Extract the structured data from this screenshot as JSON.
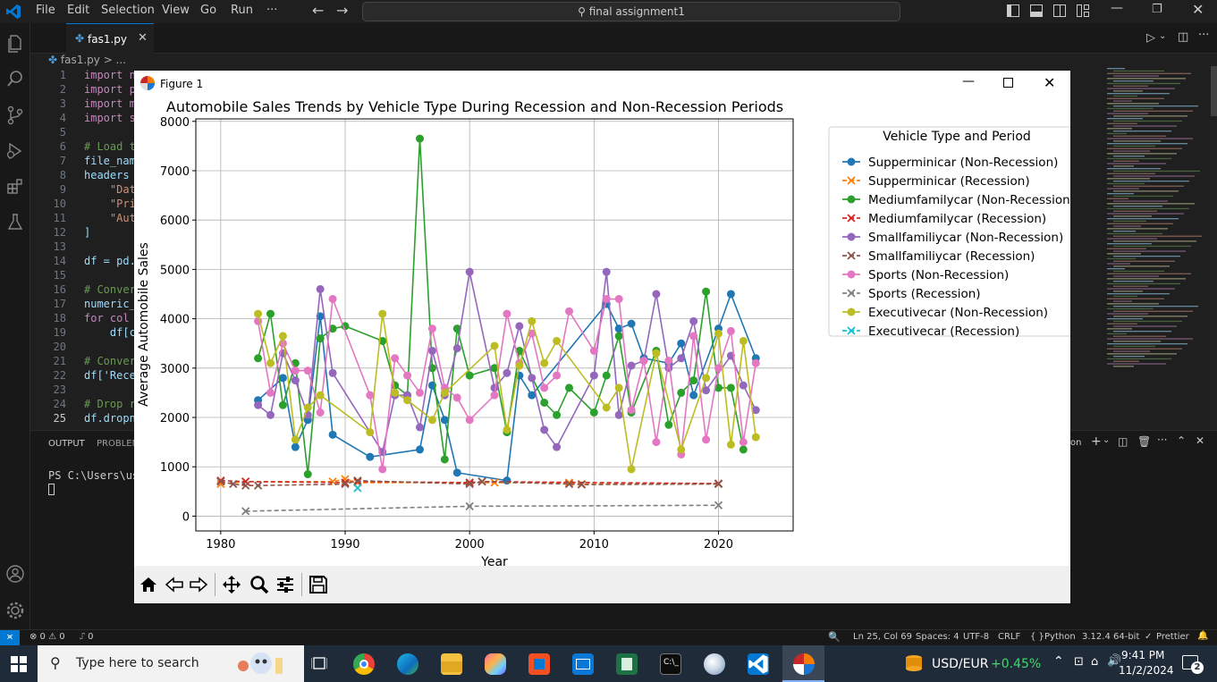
{
  "titlebar": {
    "menu": [
      "File",
      "Edit",
      "Selection",
      "View",
      "Go",
      "Run",
      "···"
    ],
    "search": "final assignment1"
  },
  "editor": {
    "tab_label": "fas1.py",
    "breadcrumb": "fas1.py > ...",
    "lines": [
      {
        "n": "1",
        "text": "import nu"
      },
      {
        "n": "2",
        "text": "import pa"
      },
      {
        "n": "3",
        "text": "import ma"
      },
      {
        "n": "4",
        "text": "import se"
      },
      {
        "n": "5",
        "text": ""
      },
      {
        "n": "6",
        "text": "# Load th"
      },
      {
        "n": "7",
        "text": "file_name"
      },
      {
        "n": "8",
        "text": "headers ="
      },
      {
        "n": "9",
        "text": "    \"Date"
      },
      {
        "n": "10",
        "text": "    \"Pric"
      },
      {
        "n": "11",
        "text": "    \"Auto"
      },
      {
        "n": "12",
        "text": "]"
      },
      {
        "n": "13",
        "text": ""
      },
      {
        "n": "14",
        "text": "df = pd.r"
      },
      {
        "n": "15",
        "text": ""
      },
      {
        "n": "16",
        "text": "# Convert"
      },
      {
        "n": "17",
        "text": "numeric_c"
      },
      {
        "n": "18",
        "text": "for col i"
      },
      {
        "n": "19",
        "text": "    df[cc"
      },
      {
        "n": "20",
        "text": ""
      },
      {
        "n": "21",
        "text": "# Convert"
      },
      {
        "n": "22",
        "text": "df['Reces"
      },
      {
        "n": "23",
        "text": ""
      },
      {
        "n": "24",
        "text": "# Drop ro"
      },
      {
        "n": "25",
        "text": "df.dropna"
      }
    ]
  },
  "panel": {
    "tabs": [
      "OUTPUT",
      "PROBLEMS"
    ],
    "terminal_prompt": "PS C:\\Users\\user",
    "right_label": "on"
  },
  "statusbar": {
    "problems": "⊗ 0 ⚠ 0",
    "ports": "⑀ 0",
    "position": "Ln 25, Col 69",
    "spaces": "Spaces: 4",
    "encoding": "UTF-8",
    "eol": "CRLF",
    "language": "Python",
    "interpreter": "3.12.4 64-bit",
    "formatter": "Prettier"
  },
  "taskbar": {
    "search_placeholder": "Type here to search",
    "ticker_name": "USD/EUR",
    "ticker_change": "+0.45%",
    "time": "9:41 PM",
    "date": "11/2/2024",
    "notifications": "2"
  },
  "figure": {
    "window_title": "Figure 1"
  },
  "colors": {
    "accent": "#0078d4"
  },
  "chart_data": {
    "type": "line",
    "title": "Automobile Sales Trends by Vehicle Type During Recession and Non-Recession Periods",
    "xlabel": "Year",
    "ylabel": "Average Automobile Sales",
    "xlim": [
      1978,
      2026
    ],
    "ylim": [
      -300,
      8050
    ],
    "xticks": [
      1980,
      1990,
      2000,
      2010,
      2020
    ],
    "yticks": [
      0,
      1000,
      2000,
      3000,
      4000,
      5000,
      6000,
      7000,
      8000
    ],
    "grid": true,
    "legend_title": "Vehicle Type and Period",
    "legend_position": "outside-right",
    "series": [
      {
        "name": "Supperminicar (Non-Recession)",
        "color": "#1f77b4",
        "style": "solid",
        "marker": "o",
        "x": [
          1983,
          1985,
          1986,
          1987,
          1988,
          1989,
          1992,
          1996,
          1997,
          1998,
          1999,
          2003,
          2004,
          2005,
          2011,
          2012,
          2013,
          2014,
          2016,
          2017,
          2018,
          2020,
          2021,
          2023
        ],
        "y": [
          2350,
          2800,
          1400,
          1950,
          4050,
          1650,
          1200,
          1350,
          2650,
          1950,
          880,
          720,
          2850,
          2450,
          4300,
          3800,
          3900,
          3200,
          3100,
          3500,
          2450,
          3800,
          4500,
          3200
        ]
      },
      {
        "name": "Supperminicar (Recession)",
        "color": "#ff7f0e",
        "style": "dashed",
        "marker": "x",
        "x": [
          1980,
          1982,
          1989,
          1990,
          1991,
          2000,
          2002,
          2008,
          2009,
          2020
        ],
        "y": [
          650,
          700,
          700,
          750,
          680,
          680,
          680,
          680,
          650,
          660
        ]
      },
      {
        "name": "Mediumfamilycar (Non-Recession)",
        "color": "#2ca02c",
        "style": "solid",
        "marker": "o",
        "x": [
          1983,
          1984,
          1985,
          1986,
          1987,
          1988,
          1989,
          1990,
          1993,
          1994,
          1995,
          1996,
          1997,
          1998,
          1999,
          2000,
          2002,
          2003,
          2004,
          2006,
          2007,
          2008,
          2010,
          2011,
          2012,
          2013,
          2015,
          2016,
          2017,
          2018,
          2019,
          2020,
          2021,
          2022
        ],
        "y": [
          3200,
          4100,
          2250,
          3100,
          850,
          3600,
          3800,
          3850,
          3550,
          2650,
          2450,
          7650,
          3000,
          1150,
          3800,
          2850,
          3000,
          1700,
          3350,
          2300,
          2050,
          2600,
          2100,
          2850,
          3650,
          2100,
          3350,
          1850,
          2500,
          2750,
          4550,
          2600,
          2600,
          1350
        ]
      },
      {
        "name": "Mediumfamilycar (Recession)",
        "color": "#d62728",
        "style": "dashed",
        "marker": "x",
        "x": [
          1980,
          1982,
          1990,
          1991,
          2000,
          2001,
          2020
        ],
        "y": [
          720,
          700,
          680,
          700,
          680,
          700,
          660
        ]
      },
      {
        "name": "Smallfamiliycar (Non-Recession)",
        "color": "#9467bd",
        "style": "solid",
        "marker": "o",
        "x": [
          1983,
          1984,
          1985,
          1986,
          1987,
          1988,
          1989,
          1993,
          1994,
          1995,
          1996,
          1997,
          1998,
          1999,
          2000,
          2002,
          2003,
          2004,
          2005,
          2006,
          2007,
          2010,
          2011,
          2012,
          2013,
          2014,
          2015,
          2016,
          2017,
          2018,
          2019,
          2021,
          2022,
          2023
        ],
        "y": [
          2250,
          2050,
          3300,
          2750,
          2050,
          4600,
          2900,
          1300,
          2450,
          2450,
          1800,
          3350,
          2450,
          3400,
          4950,
          2600,
          2900,
          3850,
          2800,
          1750,
          1400,
          2850,
          4950,
          2050,
          3050,
          3150,
          4500,
          3000,
          3200,
          3950,
          2550,
          3250,
          2650,
          2150
        ]
      },
      {
        "name": "Smallfamiliycar (Recession)",
        "color": "#8c564b",
        "style": "dashed",
        "marker": "x",
        "x": [
          1980,
          1981,
          1982,
          1983,
          1990,
          1991,
          2000,
          2001,
          2008,
          2009,
          2020
        ],
        "y": [
          700,
          650,
          620,
          620,
          650,
          720,
          650,
          700,
          650,
          640,
          650
        ]
      },
      {
        "name": "Sports (Non-Recession)",
        "color": "#e377c2",
        "style": "solid",
        "marker": "o",
        "x": [
          1983,
          1984,
          1985,
          1986,
          1987,
          1988,
          1989,
          1992,
          1993,
          1994,
          1995,
          1996,
          1997,
          1998,
          1999,
          2000,
          2002,
          2003,
          2004,
          2005,
          2006,
          2007,
          2008,
          2010,
          2011,
          2012,
          2013,
          2014,
          2015,
          2016,
          2017,
          2018,
          2019,
          2020,
          2021,
          2022,
          2023
        ],
        "y": [
          3950,
          2500,
          3500,
          2950,
          2950,
          2100,
          4400,
          2450,
          950,
          3200,
          2850,
          2500,
          3800,
          2600,
          2400,
          1950,
          2450,
          4100,
          3100,
          3700,
          2600,
          2850,
          4150,
          3350,
          4400,
          4400,
          2150,
          3150,
          1500,
          3150,
          1250,
          3650,
          1550,
          3000,
          3750,
          1500,
          3100
        ]
      },
      {
        "name": "Sports (Recession)",
        "color": "#7f7f7f",
        "style": "dashed",
        "marker": "x",
        "x": [
          1982,
          2000,
          2020
        ],
        "y": [
          100,
          200,
          220
        ]
      },
      {
        "name": "Executivecar (Non-Recession)",
        "color": "#bcbd22",
        "style": "solid",
        "marker": "o",
        "x": [
          1983,
          1984,
          1985,
          1986,
          1987,
          1988,
          1992,
          1993,
          1994,
          1995,
          1997,
          1998,
          2002,
          2003,
          2004,
          2005,
          2006,
          2007,
          2011,
          2012,
          2013,
          2015,
          2017,
          2019,
          2020,
          2021,
          2022,
          2023
        ],
        "y": [
          4100,
          3100,
          3650,
          1550,
          2200,
          2450,
          1700,
          4100,
          2500,
          2350,
          1950,
          2500,
          3450,
          1750,
          3050,
          3950,
          3100,
          3550,
          2200,
          2600,
          950,
          3300,
          1350,
          2800,
          3700,
          1450,
          3550,
          1600
        ]
      },
      {
        "name": "Executivecar (Recession)",
        "color": "#17becf",
        "style": "dashed",
        "marker": "x",
        "x": [
          1991
        ],
        "y": [
          570
        ]
      }
    ]
  }
}
